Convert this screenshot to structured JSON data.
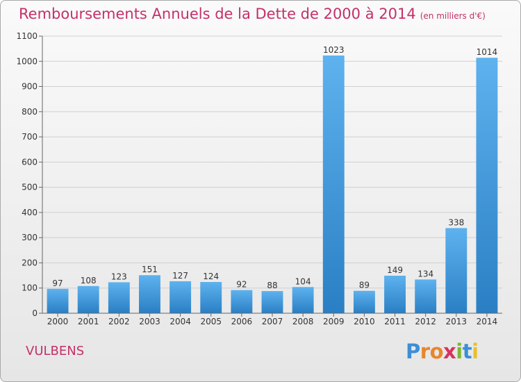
{
  "title": "Remboursements Annuels de la Dette de 2000 à 2014",
  "subtitle": "(en milliers d'€)",
  "commune": "VULBENS",
  "logo": {
    "letters": [
      "P",
      "r",
      "o",
      "x",
      "i",
      "t",
      "i"
    ],
    "colors": [
      "#3b8fd6",
      "#e8862c",
      "#e8862c",
      "#d6335f",
      "#7fb733",
      "#3b8fd6",
      "#e8c02c"
    ]
  },
  "colors": {
    "title": "#c4306a",
    "bar_light": "#5eb2ee",
    "bar_dark": "#2a7fc4",
    "grid": "#cfcfcf"
  },
  "chart_data": {
    "type": "bar",
    "title": "Remboursements Annuels de la Dette de 2000 à 2014",
    "subtitle": "(en milliers d'€)",
    "categories": [
      "2000",
      "2001",
      "2002",
      "2003",
      "2004",
      "2005",
      "2006",
      "2007",
      "2008",
      "2009",
      "2010",
      "2011",
      "2012",
      "2013",
      "2014"
    ],
    "values": [
      97,
      108,
      123,
      151,
      127,
      124,
      92,
      88,
      104,
      1023,
      89,
      149,
      134,
      338,
      1014
    ],
    "ylim": [
      0,
      1100
    ],
    "yticks": [
      0,
      100,
      200,
      300,
      400,
      500,
      600,
      700,
      800,
      900,
      1000,
      1100
    ],
    "grid": true,
    "data_labels": true
  }
}
